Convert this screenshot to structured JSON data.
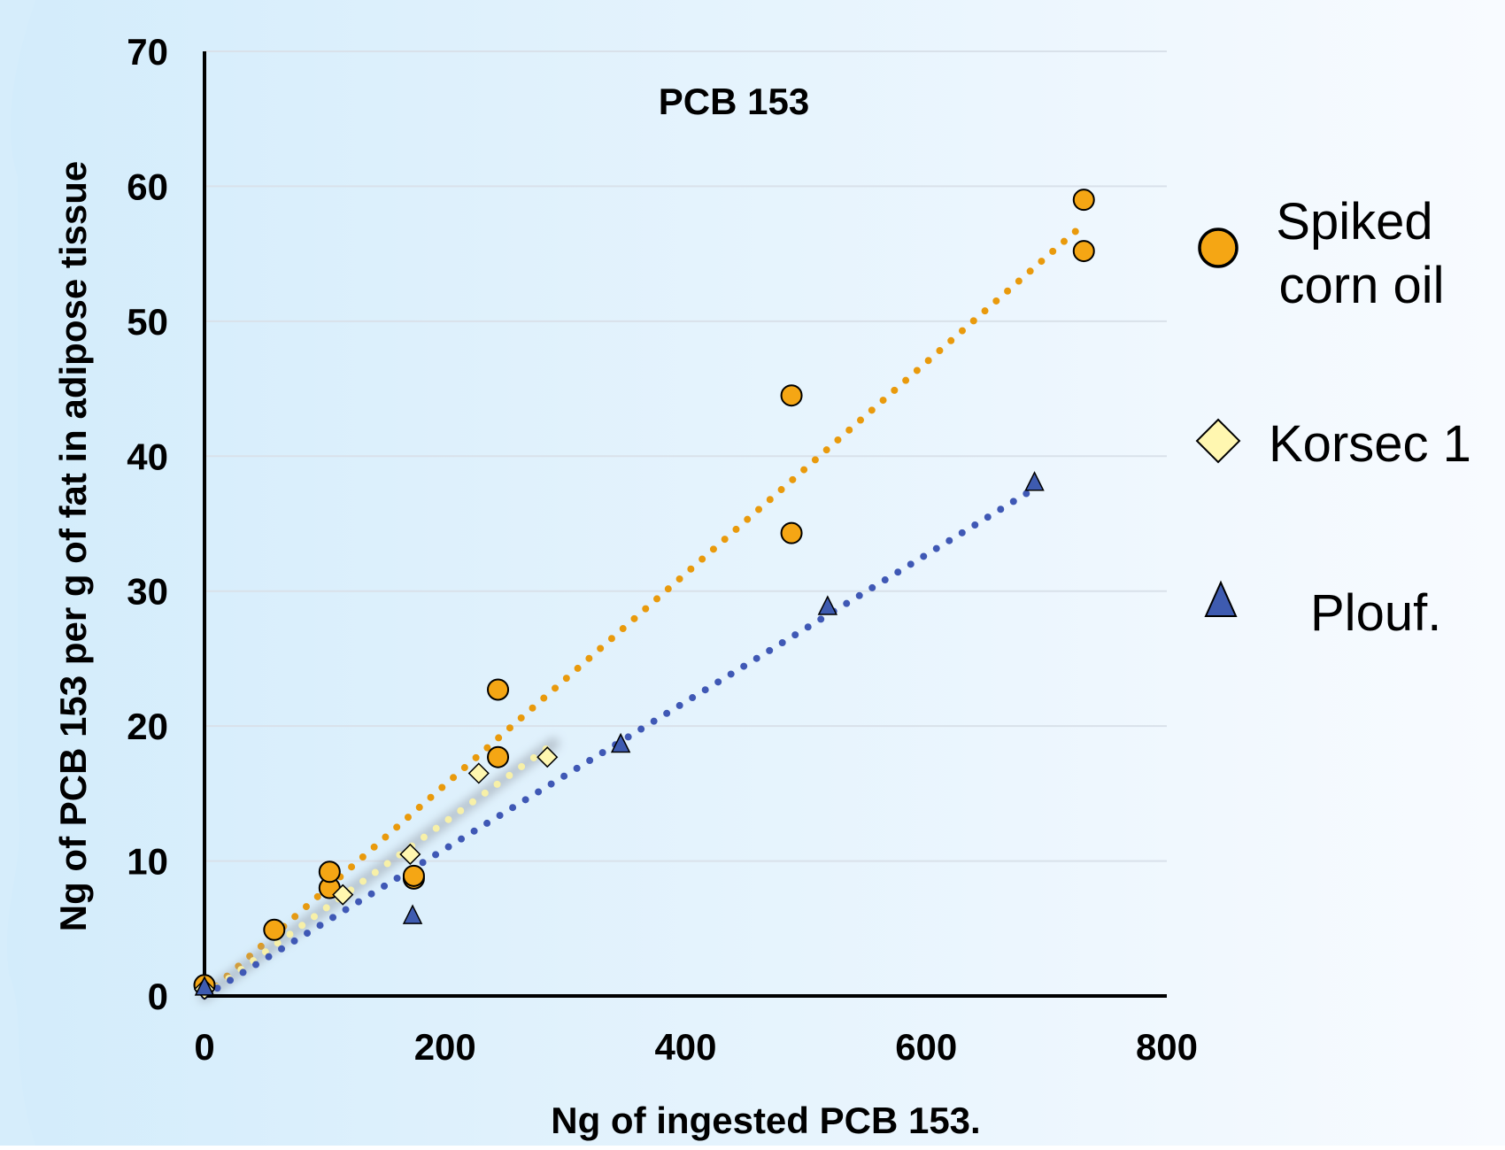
{
  "chart_data": {
    "type": "scatter",
    "title": "PCB 153",
    "xlabel": "Ng of ingested PCB 153.",
    "ylabel": "Ng of PCB 153 per g of fat in adipose tissue",
    "xlim": [
      0,
      800
    ],
    "ylim": [
      0,
      70
    ],
    "xticks": [
      "0",
      "200",
      "400",
      "600",
      "800"
    ],
    "yticks": [
      "0",
      "10",
      "20",
      "30",
      "40",
      "50",
      "60",
      "70"
    ],
    "grid": "horizontal",
    "legend_position": "right",
    "series": [
      {
        "name": "Spiked corn oil",
        "marker": "circle",
        "color": "#F5A614",
        "points": [
          [
            0,
            0.8
          ],
          [
            58,
            4.9
          ],
          [
            104,
            8.0
          ],
          [
            104,
            9.2
          ],
          [
            174,
            8.7
          ],
          [
            174,
            8.9
          ],
          [
            244,
            17.7
          ],
          [
            244,
            22.7
          ],
          [
            488,
            34.3
          ],
          [
            488,
            44.5
          ],
          [
            731,
            55.2
          ],
          [
            731,
            59.0
          ]
        ],
        "trendline": [
          [
            0,
            0
          ],
          [
            731,
            57.2
          ]
        ]
      },
      {
        "name": "Korsec 1",
        "marker": "diamond",
        "color": "#FFF7B0",
        "points": [
          [
            0,
            0.5
          ],
          [
            115,
            7.5
          ],
          [
            171,
            10.5
          ],
          [
            228,
            16.5
          ],
          [
            285,
            17.7
          ]
        ],
        "trendline": [
          [
            0,
            0
          ],
          [
            290,
            18.7
          ]
        ]
      },
      {
        "name": "Plouf.",
        "marker": "triangle",
        "color": "#3E5BB0",
        "points": [
          [
            0,
            0.6
          ],
          [
            173,
            5.9
          ],
          [
            346,
            18.6
          ],
          [
            518,
            28.8
          ],
          [
            690,
            38.0
          ]
        ],
        "trendline": [
          [
            0,
            0
          ],
          [
            690,
            37.6
          ]
        ]
      }
    ]
  }
}
